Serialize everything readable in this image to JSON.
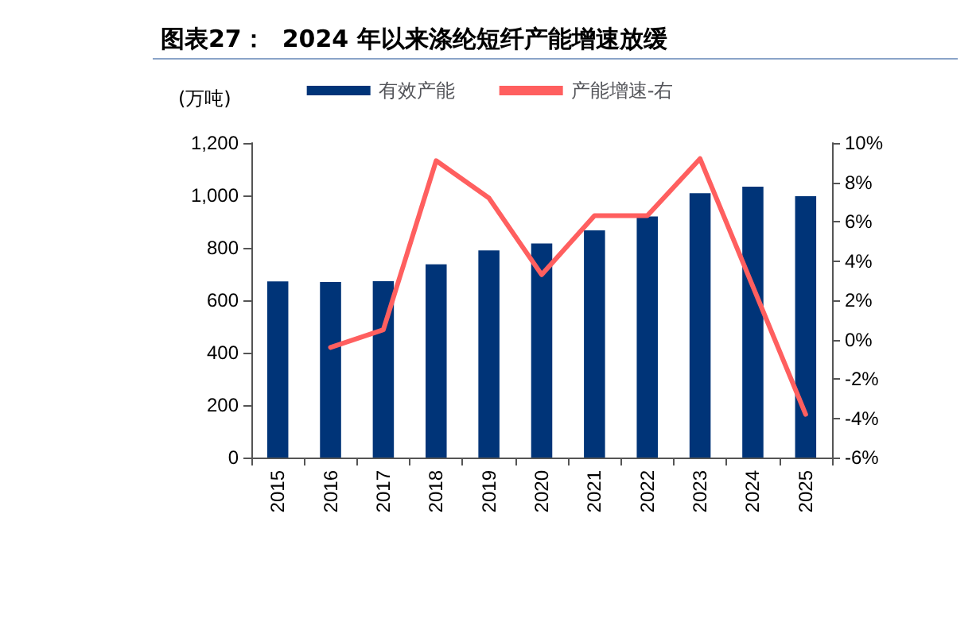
{
  "chart_data": {
    "type": "bar",
    "title": "图表27：  2024 年以来涤纶短纤产能增速放缓",
    "ylabel": "(万吨)",
    "categories": [
      "2015",
      "2016",
      "2017",
      "2018",
      "2019",
      "2020",
      "2021",
      "2022",
      "2023",
      "2024",
      "2025"
    ],
    "series": [
      {
        "name": "有效产能",
        "color": "#003478",
        "values": [
          672,
          670,
          673,
          737,
          790,
          817,
          867,
          920,
          1008,
          1033,
          997
        ]
      },
      {
        "name": "产能增速-右",
        "type": "line",
        "axis": "y2",
        "color": "#ff5f5f",
        "values": [
          null,
          -0.4,
          0.5,
          9.1,
          7.2,
          3.3,
          6.3,
          6.3,
          9.2,
          2.7,
          -3.8
        ]
      }
    ],
    "ylim": [
      0,
      1200
    ],
    "yticks": [
      0,
      {
        "value": 200,
        "label": "200"
      },
      {
        "value": 400,
        "label": "400"
      },
      {
        "value": 600,
        "label": "600"
      },
      {
        "value": 800,
        "label": "800"
      },
      {
        "value": 1000,
        "label": "1,000"
      },
      {
        "value": 1200,
        "label": "1,200"
      }
    ],
    "y2lim": [
      -6,
      10
    ],
    "y2ticks": [
      {
        "value": -6,
        "label": "-6%"
      },
      {
        "value": -4,
        "label": "-4%"
      },
      {
        "value": -2,
        "label": "-2%"
      },
      {
        "value": 0,
        "label": "0%"
      },
      {
        "value": 2,
        "label": "2%"
      },
      {
        "value": 4,
        "label": "4%"
      },
      {
        "value": 6,
        "label": "6%"
      },
      {
        "value": 8,
        "label": "8%"
      },
      {
        "value": 10,
        "label": "10%"
      }
    ],
    "grid": false,
    "legend": "top",
    "marker": "none",
    "line_style": "solid"
  }
}
